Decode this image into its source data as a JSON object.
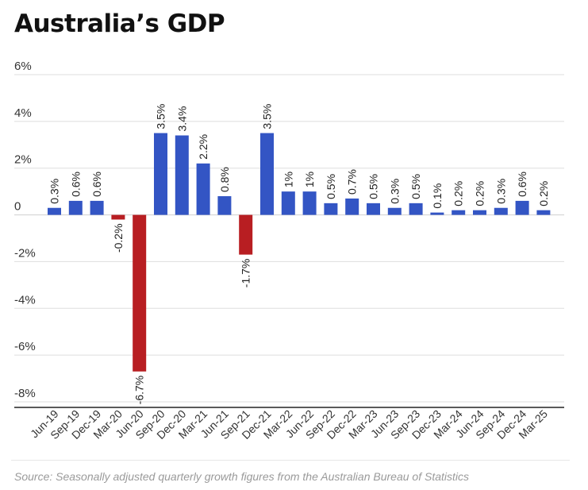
{
  "header": {
    "title": "Australia’s GDP"
  },
  "footer": {
    "source": "Source: Seasonally adjusted quarterly growth figures from the Australian Bureau of Statistics"
  },
  "colors": {
    "positive": "#3355c4",
    "negative": "#b81e22",
    "grid": "#dedede",
    "axis": "#222222",
    "text": "#333333"
  },
  "chart_data": {
    "type": "bar",
    "title": "Australia’s GDP",
    "xlabel": "",
    "ylabel": "",
    "ylim": [
      -8,
      6
    ],
    "yticks": [
      6,
      4,
      2,
      0,
      -2,
      -4,
      -6,
      -8
    ],
    "ytick_labels": [
      "6%",
      "4%",
      "2%",
      "0",
      "-2%",
      "-4%",
      "-6%",
      "-8%"
    ],
    "grid": true,
    "legend": "none",
    "categories": [
      "Jun-19",
      "Sep-19",
      "Dec-19",
      "Mar-20",
      "Jun-20",
      "Sep-20",
      "Dec-20",
      "Mar-21",
      "Jun-21",
      "Sep-21",
      "Dec-21",
      "Mar-22",
      "Jun-22",
      "Sep-22",
      "Dec-22",
      "Mar-23",
      "Jun-23",
      "Sep-23",
      "Dec-23",
      "Mar-24",
      "Jun-24",
      "Sep-24",
      "Dec-24",
      "Mar-25"
    ],
    "values": [
      0.3,
      0.6,
      0.6,
      -0.2,
      -6.7,
      3.5,
      3.4,
      2.2,
      0.8,
      -1.7,
      3.5,
      1,
      1,
      0.5,
      0.7,
      0.5,
      0.3,
      0.5,
      0.1,
      0.2,
      0.2,
      0.3,
      0.6,
      0.2
    ],
    "data_labels": [
      "0.3%",
      "0.6%",
      "0.6%",
      "-0.2%",
      "-6.7%",
      "3.5%",
      "3.4%",
      "2.2%",
      "0.8%",
      "-1.7%",
      "3.5%",
      "1%",
      "1%",
      "0.5%",
      "0.7%",
      "0.5%",
      "0.3%",
      "0.5%",
      "0.1%",
      "0.2%",
      "0.2%",
      "0.3%",
      "0.6%",
      "0.2%"
    ]
  }
}
